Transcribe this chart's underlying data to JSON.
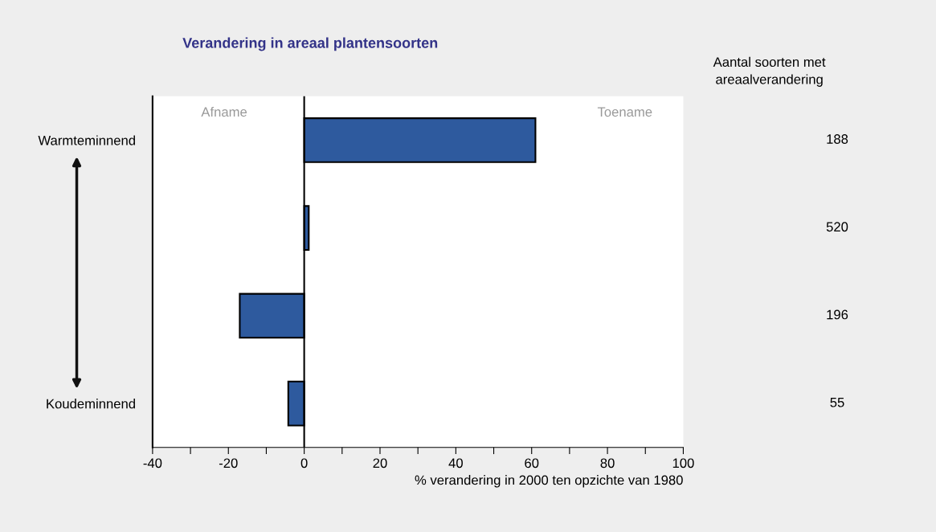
{
  "chart_data": {
    "type": "bar",
    "orientation": "horizontal",
    "title": "Verandering in areaal plantensoorten",
    "xlabel": "% verandering in 2000 ten opzichte van 1980",
    "categories": [
      "Warmteminnend",
      null,
      null,
      "Koudeminnend"
    ],
    "values": [
      61,
      1.2,
      -17,
      -4.2
    ],
    "color": "#2e5a9e",
    "xlim": [
      -40,
      100
    ],
    "xticks": [
      -40,
      {
        "value": -30,
        "label": null
      },
      -20,
      {
        "value": -10,
        "label": null
      },
      0,
      {
        "value": 10,
        "label": null
      },
      20,
      {
        "value": 30,
        "label": null
      },
      40,
      {
        "value": 50,
        "label": null
      },
      60,
      {
        "value": 70,
        "label": null
      },
      80,
      {
        "value": 90,
        "label": null
      },
      100
    ],
    "ref_lines": [
      {
        "axis": "x",
        "value": 0,
        "color": "#000000"
      }
    ],
    "grid": false,
    "annotations": [
      "Afname",
      "Toename",
      "Aantal soorten met\nareaalverandering",
      "188",
      "520",
      "196",
      "55"
    ]
  }
}
